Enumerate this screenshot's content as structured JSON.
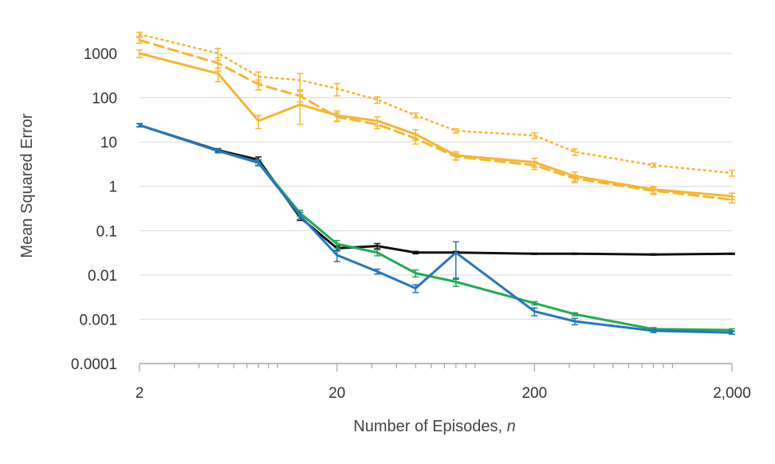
{
  "chart_data": {
    "type": "line",
    "xscale": "log",
    "yscale": "log",
    "xlim": [
      2,
      2100
    ],
    "ylim": [
      0.0001,
      3000
    ],
    "grid": "horizontal",
    "legend": "none",
    "xlabel": "Number of Episodes, ",
    "xlabel_var": "n",
    "ylabel": "Mean Squared Error",
    "xticks": [
      {
        "value": 2,
        "label": "2"
      },
      {
        "value": 20,
        "label": "20"
      },
      {
        "value": 200,
        "label": "200"
      },
      {
        "value": 2000,
        "label": "2,000"
      }
    ],
    "yticks": [
      {
        "value": 0.0001,
        "label": "0.0001"
      },
      {
        "value": 0.001,
        "label": "0.001"
      },
      {
        "value": 0.01,
        "label": "0.01"
      },
      {
        "value": 0.1,
        "label": "0.1"
      },
      {
        "value": 1,
        "label": "1"
      },
      {
        "value": 10,
        "label": "10"
      },
      {
        "value": 100,
        "label": "100"
      },
      {
        "value": 1000,
        "label": "1000"
      }
    ],
    "x": [
      2,
      5,
      8,
      13,
      20,
      32,
      50,
      80,
      200,
      320,
      800,
      2000
    ],
    "series": [
      {
        "color": "#F5B731",
        "dash": "2,5",
        "width": 2.5,
        "values": [
          2700,
          1000,
          300,
          250,
          160,
          90,
          40,
          18,
          14,
          6,
          3,
          2
        ],
        "errors": [
          300,
          300,
          80,
          100,
          50,
          15,
          5,
          2,
          2,
          1,
          0.3,
          0.3
        ]
      },
      {
        "color": "#F5B731",
        "dash": "12,7",
        "width": 3,
        "values": [
          2000,
          600,
          200,
          110,
          37,
          25,
          12,
          4.7,
          3,
          1.5,
          0.8,
          0.5
        ],
        "errors": [
          300,
          200,
          50,
          30,
          8,
          5,
          3,
          0.8,
          0.6,
          0.3,
          0.15,
          0.08
        ]
      },
      {
        "color": "#F5B731",
        "dash": "",
        "width": 3,
        "values": [
          1000,
          350,
          30,
          70,
          40,
          30,
          15,
          5,
          3.5,
          1.7,
          0.85,
          0.6
        ],
        "errors": [
          200,
          120,
          10,
          45,
          10,
          7,
          4,
          1,
          0.8,
          0.4,
          0.15,
          0.1
        ]
      },
      {
        "color": "#111111",
        "dash": "",
        "width": 3,
        "values": [
          24,
          6.5,
          4,
          0.2,
          0.04,
          0.045,
          0.032,
          0.032,
          0.03,
          0.03,
          0.029,
          0.03
        ],
        "errors": [
          2,
          0.6,
          0.6,
          0.03,
          0.005,
          0.006,
          0.002,
          0.002,
          0.001,
          0.001,
          0.001,
          0.001
        ]
      },
      {
        "color": "#22AA55",
        "dash": "",
        "width": 3,
        "values": [
          24,
          6.3,
          3.5,
          0.25,
          0.05,
          0.032,
          0.011,
          0.007,
          0.0023,
          0.0013,
          0.0006,
          0.00057
        ],
        "errors": [
          2,
          0.6,
          0.5,
          0.04,
          0.01,
          0.005,
          0.002,
          0.0015,
          0.0002,
          0.0001,
          5e-05,
          4e-05
        ]
      },
      {
        "color": "#2775C1",
        "dash": "",
        "width": 3,
        "values": [
          24,
          6.3,
          3.4,
          0.22,
          0.028,
          0.012,
          0.005,
          0.032,
          0.0015,
          0.0009,
          0.00055,
          0.0005
        ],
        "errors": [
          2,
          0.6,
          0.5,
          0.04,
          0.008,
          0.0015,
          0.001,
          0.024,
          0.0003,
          0.00015,
          5e-05,
          4e-05
        ]
      }
    ]
  }
}
